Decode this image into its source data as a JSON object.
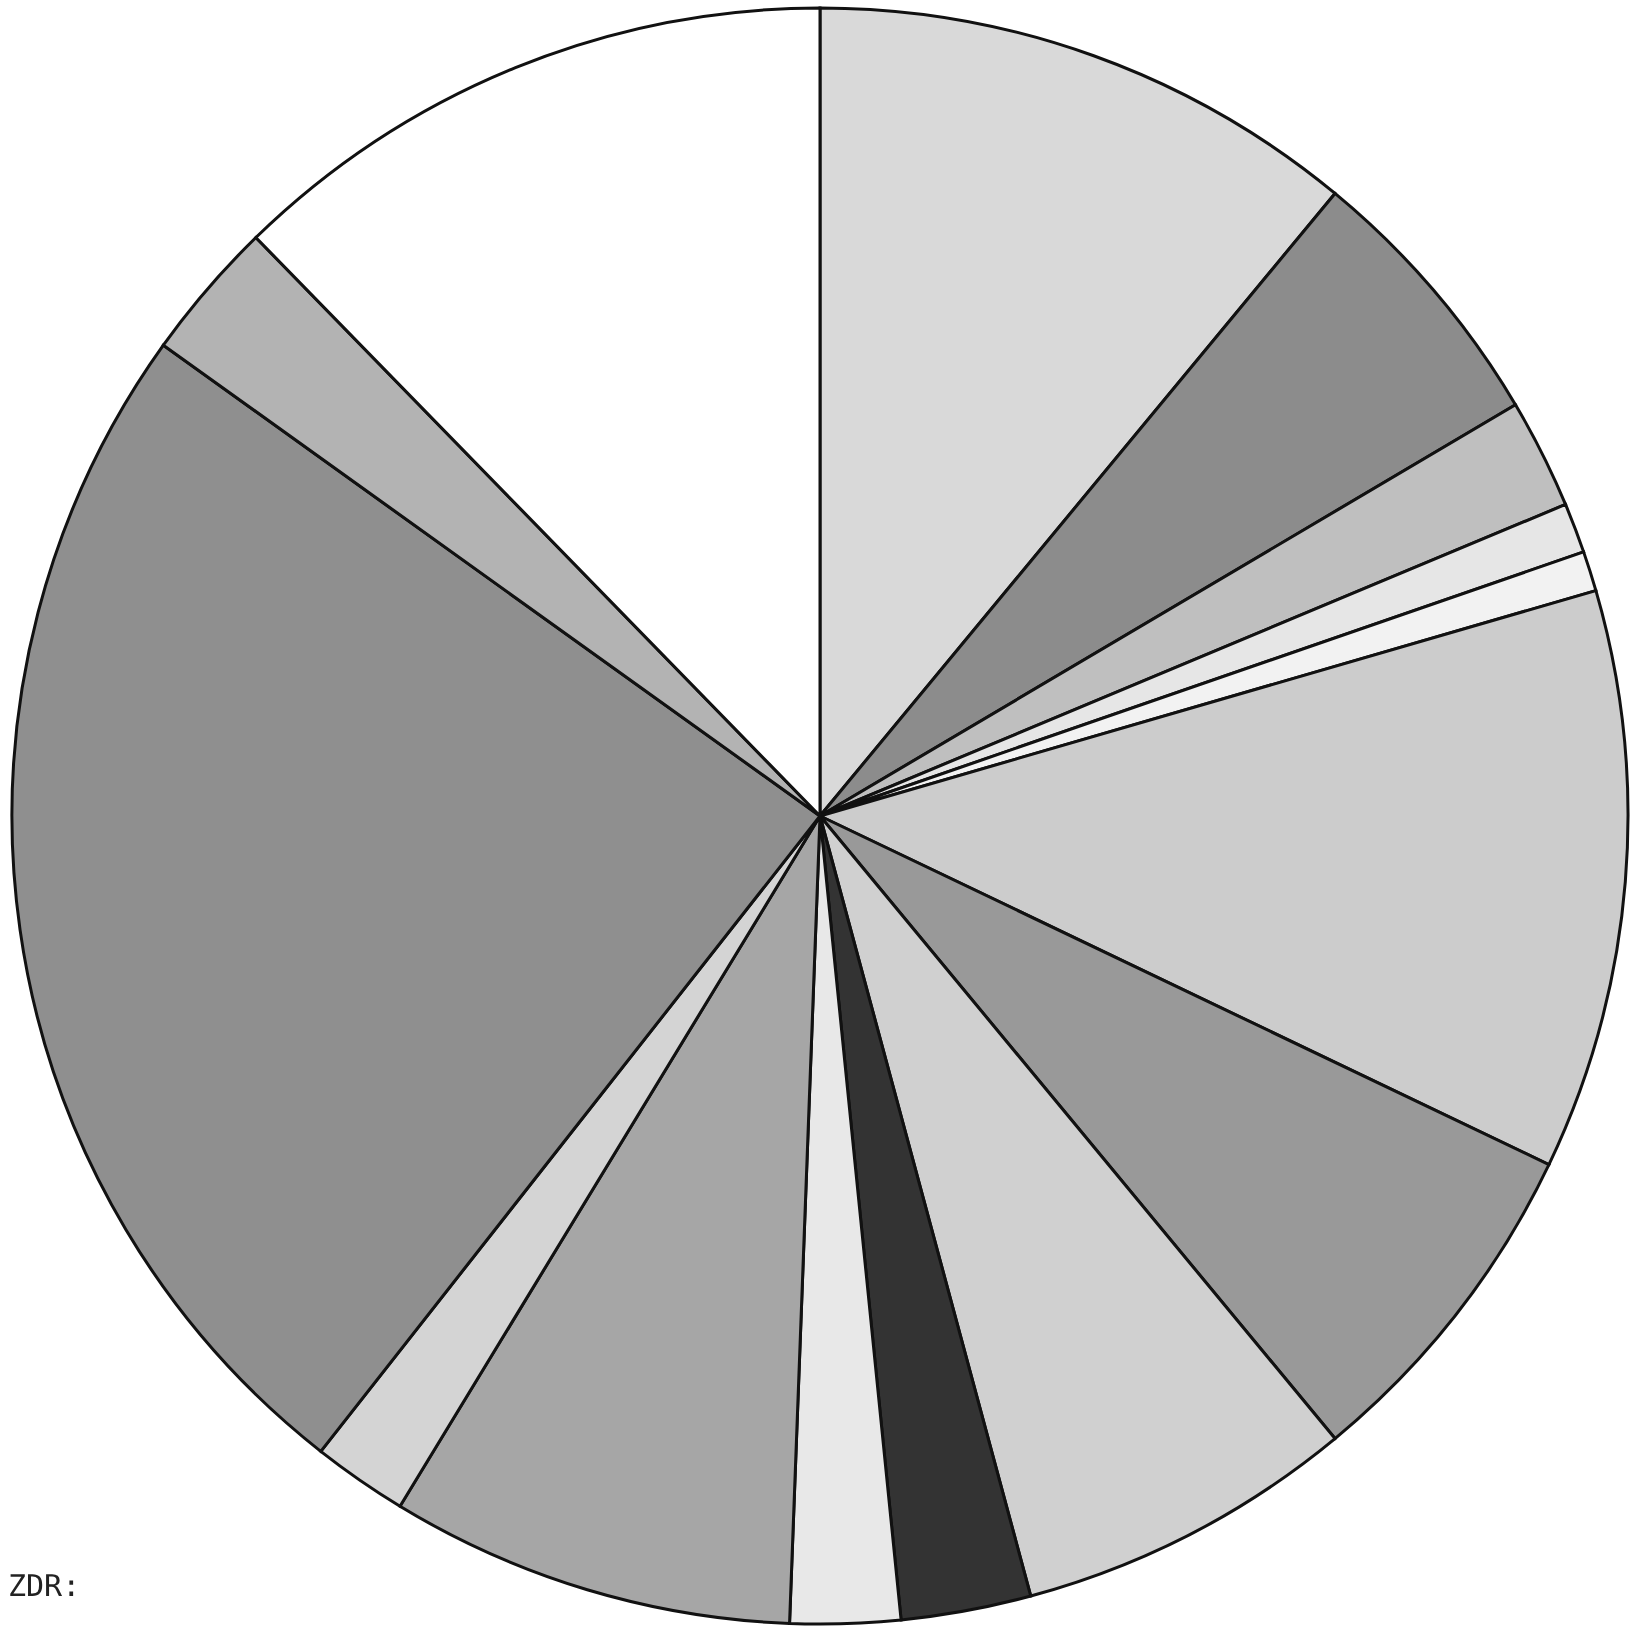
{
  "chart_data": {
    "type": "pie",
    "categories": [
      null,
      null,
      null,
      null,
      null,
      null,
      null,
      null,
      null,
      null,
      null,
      null,
      null,
      null,
      null
    ],
    "values": [
      11.0,
      5.5,
      2.2,
      1.0,
      0.8,
      11.6,
      6.9,
      6.8,
      2.6,
      2.2,
      8.1,
      1.9,
      24.3,
      2.8,
      12.3
    ],
    "colors": [
      "#d9d9d9",
      "#8c8c8c",
      "#bfbfbf",
      "#e6e6e6",
      "#f2f2f2",
      "#cccccc",
      "#999999",
      "#d0d0d0",
      "#333333",
      "#e8e8e8",
      "#a6a6a6",
      "#d4d4d4",
      "#8f8f8f",
      "#b3b3b3",
      "#ffffff"
    ],
    "annotations": [
      "ZDR:"
    ]
  }
}
